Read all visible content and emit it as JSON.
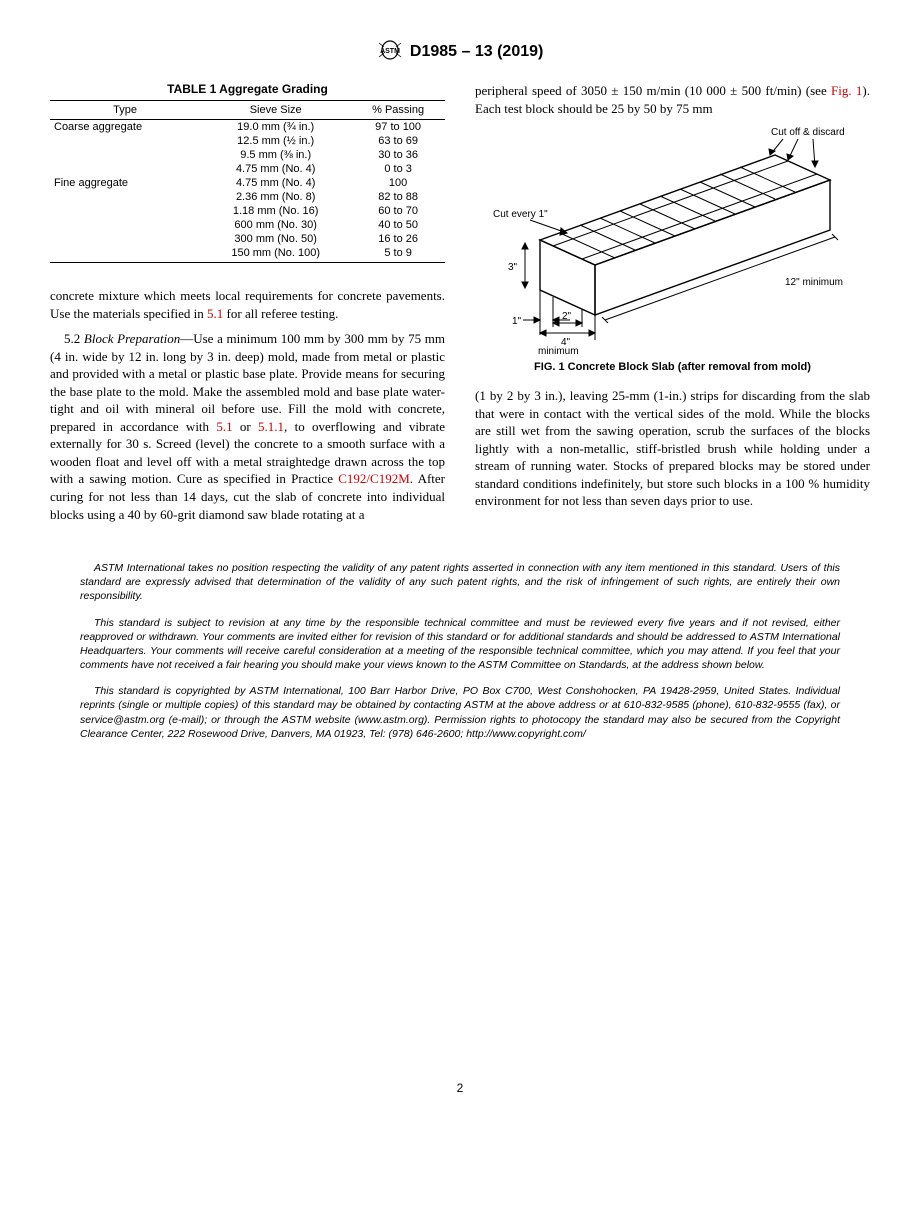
{
  "header": {
    "designation": "D1985 – 13 (2019)"
  },
  "table": {
    "title": "TABLE 1 Aggregate Grading",
    "columns": [
      "Type",
      "Sieve Size",
      "% Passing"
    ],
    "rows": [
      [
        "Coarse aggregate",
        "19.0 mm (¾ in.)",
        "97 to 100"
      ],
      [
        "",
        "12.5 mm (½ in.)",
        "63 to 69"
      ],
      [
        "",
        "9.5 mm (⅜ in.)",
        "30 to 36"
      ],
      [
        "",
        "4.75 mm (No. 4)",
        "0 to 3"
      ],
      [
        "Fine aggregate",
        "4.75 mm (No. 4)",
        "100"
      ],
      [
        "",
        "2.36 mm (No. 8)",
        "82 to 88"
      ],
      [
        "",
        "1.18 mm (No. 16)",
        "60 to 70"
      ],
      [
        "",
        "600 mm (No. 30)",
        "40 to 50"
      ],
      [
        "",
        "300 mm (No. 50)",
        "16 to 26"
      ],
      [
        "",
        "150 mm (No. 100)",
        "5 to 9"
      ]
    ]
  },
  "leftCol": {
    "p1_pre": "concrete mixture which meets local requirements for concrete pavements. Use the materials specified in ",
    "p1_ref": "5.1",
    "p1_post": " for all referee testing.",
    "p2_lead": "5.2 ",
    "p2_head": "Block Preparation",
    "p2_a": "—Use a minimum 100 mm by 300 mm by 75 mm (4 in. wide by 12 in. long by 3 in. deep) mold, made from metal or plastic and provided with a metal or plastic base plate. Provide means for securing the base plate to the mold. Make the assembled mold and base plate water-tight and oil with mineral oil before use. Fill the mold with concrete, prepared in accordance with ",
    "p2_ref1": "5.1",
    "p2_mid1": " or ",
    "p2_ref2": "5.1.1",
    "p2_b": ", to overflowing and vibrate externally for 30 s. Screed (level) the concrete to a smooth surface with a wooden float and level off with a metal straightedge drawn across the top with a sawing motion. Cure as specified in Practice ",
    "p2_ref3": "C192/C192M",
    "p2_c": ". After curing for not less than 14 days, cut the slab of concrete into individual blocks using a 40 by 60-grit diamond saw blade rotating at a"
  },
  "rightCol": {
    "r1_a": "peripheral speed of 3050 ± 150 m/min (10 000 ± 500 ft/min) (see ",
    "r1_ref": "Fig. 1",
    "r1_b": "). Each test block should be 25 by 50 by 75 mm",
    "fig_caption": "FIG. 1 Concrete Block Slab (after removal from mold)",
    "fig_labels": {
      "cutoff": "Cut off & discard",
      "cutevery": "Cut every 1\"",
      "twelve": "12\" minimum",
      "three": "3\"",
      "one": "1\"",
      "two": "2\"",
      "four": "4\"",
      "min": "minimum"
    },
    "r2": "(1 by 2 by 3 in.), leaving 25-mm (1-in.) strips for discarding from the slab that were in contact with the vertical sides of the mold. While the blocks are still wet from the sawing operation, scrub the surfaces of the blocks lightly with a non-metallic, stiff-bristled brush while holding under a stream of running water. Stocks of prepared blocks may be stored under standard conditions indefinitely, but store such blocks in a 100 % humidity environment for not less than seven days prior to use."
  },
  "footer": {
    "p1": "ASTM International takes no position respecting the validity of any patent rights asserted in connection with any item mentioned in this standard. Users of this standard are expressly advised that determination of the validity of any such patent rights, and the risk of infringement of such rights, are entirely their own responsibility.",
    "p2": "This standard is subject to revision at any time by the responsible technical committee and must be reviewed every five years and if not revised, either reapproved or withdrawn. Your comments are invited either for revision of this standard or for additional standards and should be addressed to ASTM International Headquarters. Your comments will receive careful consideration at a meeting of the responsible technical committee, which you may attend. If you feel that your comments have not received a fair hearing you should make your views known to the ASTM Committee on Standards, at the address shown below.",
    "p3": "This standard is copyrighted by ASTM International, 100 Barr Harbor Drive, PO Box C700, West Conshohocken, PA 19428-2959, United States. Individual reprints (single or multiple copies) of this standard may be obtained by contacting ASTM at the above address or at 610-832-9585 (phone), 610-832-9555 (fax), or service@astm.org (e-mail); or through the ASTM website (www.astm.org). Permission rights to photocopy the standard may also be secured from the Copyright Clearance Center, 222 Rosewood Drive, Danvers, MA 01923, Tel: (978) 646-2600; http://www.copyright.com/"
  },
  "pageNumber": "2"
}
